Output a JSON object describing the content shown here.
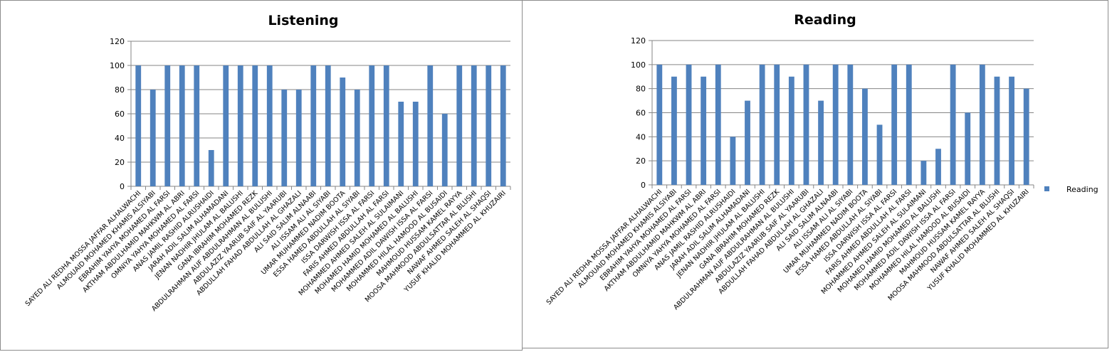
{
  "chart_data": [
    {
      "type": "bar",
      "title": "Listening",
      "xlabel": "",
      "ylabel": "",
      "ylim": [
        0,
        120
      ],
      "yticks": [
        0,
        20,
        40,
        60,
        80,
        100,
        120
      ],
      "grid": true,
      "legend": null,
      "color": "#4f81bd",
      "categories": [
        "SAYED ALI REDHA MOSSA JAFFAR ALHALWACHI",
        "ALMOUAID MOHAMED KHAMIS ALSIYABI",
        "EBRAHIM YAHYA MOHAMED AL FARSI",
        "AKTHAM ABDULHAMID MAHKWM AL ABRI",
        "OMNIYA YAHYA MOHAMED AL FARSI",
        "ANAS JAMIL RASHID ALRUSHAIDI",
        "JARAH ADIL SALIM ALHAMADANI",
        "JENAN NADHIR JHULAM AL BALUSHI",
        "GANA IBRAHIM MOHAMED REZK",
        "ABDULRAHMAN AUF ABDULRAHMAN AL BULUSHI",
        "ABDULAZIZ YAARUB SAIF AL YAARUBI",
        "ABDULLAH FAHAD ABDULLAH AL GHAZALI",
        "ALI SAID SALIM ALNAABI",
        "ALI ISSAM ALI AL SIYABI",
        "UMAR MUHAMMED NADIM BOOTA",
        "ESSA HAMED ABDULLAH AL SIYABI",
        "ISSA DARWISH ISSA AL FARSI",
        "FARIS AHMED ABDULLAH AL FARSI",
        "MOHAMMED AHMED SALEH AL SULAIMANI",
        "MOHAMED HAMID MOHAMED AL BALUSHI",
        "MOHAMMED ADIL DAWISH ISSA AL FARSI",
        "MOHAMMED HILAL HAMOOD AL BUSAIDI",
        "MAHMOUD HUSSAM KAMEL RAYYA",
        "MOOSA MAHMOOD ABDULSATTAR AL BLUSHI",
        "NAWAF AHMED SALEH AL SHAQSI",
        "YUSUF KHALID MOHAMMED AL KHUZAIRI"
      ],
      "values": [
        100,
        80,
        100,
        100,
        100,
        30,
        100,
        100,
        100,
        100,
        80,
        80,
        100,
        100,
        90,
        80,
        100,
        100,
        70,
        70,
        100,
        60,
        100,
        100,
        100,
        100
      ]
    },
    {
      "type": "bar",
      "title": "Reading",
      "xlabel": "",
      "ylabel": "",
      "ylim": [
        0,
        120
      ],
      "yticks": [
        0,
        20,
        40,
        60,
        80,
        100,
        120
      ],
      "grid": true,
      "legend": "right",
      "legend_label": "Reading",
      "color": "#4f81bd",
      "categories": [
        "SAYED ALI REDHA MOSSA JAFFAR ALHALWACHI",
        "ALMOUAID MOHAMED KHAMIS ALSIYABI",
        "EBRAHIM YAHYA MOHAMED AL FARSI",
        "AKTHAM ABDULHAMID MAHKWM AL ABRI",
        "OMNIYA YAHYA MOHAMED AL FARSI",
        "ANAS JAMIL RASHID ALRUSHAIDI",
        "JARAH ADIL SALIM ALHAMADANI",
        "JENAN NADHIR JHULAM AL BALUSHI",
        "GANA IBRAHIM MOHAMED REZK",
        "ABDULRAHMAN AUF ABDULRAHMAN AL BULUSHI",
        "ABDULAZIZ YAARUB SAIF AL YAARUBI",
        "ABDULLAH FAHAD ABDULLAH AL GHAZALI",
        "ALI SAID SALIM ALNAABI",
        "ALI ISSAM ALI AL SIYABI",
        "UMAR MUHAMMED NADIM BOOTA",
        "ESSA HAMED ABDULLAH AL SIYABI",
        "ISSA DARWISH ISSA AL FARSI",
        "FARIS AHMED ABDULLAH AL FARSI",
        "MOHAMMED AHMED SALEH AL SULAIMANI",
        "MOHAMED HAMID MOHAMED AL BALUSHI",
        "MOHAMMED ADIL DAWISH ISSA AL FARSI",
        "MOHAMMED HILAL HAMOOD AL BUSAIDI",
        "MAHMOUD HUSSAM KAMEL RAYYA",
        "MOOSA MAHMOOD ABDULSATTAR AL BLUSHI",
        "NAWAF AHMED SALEH AL SHAQSI",
        "YUSUF KHALID MOHAMMED AL KHUZAIRI"
      ],
      "values": [
        100,
        90,
        100,
        90,
        100,
        40,
        70,
        100,
        100,
        90,
        100,
        70,
        100,
        100,
        80,
        50,
        100,
        100,
        20,
        30,
        100,
        60,
        100,
        90,
        90,
        80
      ]
    }
  ]
}
